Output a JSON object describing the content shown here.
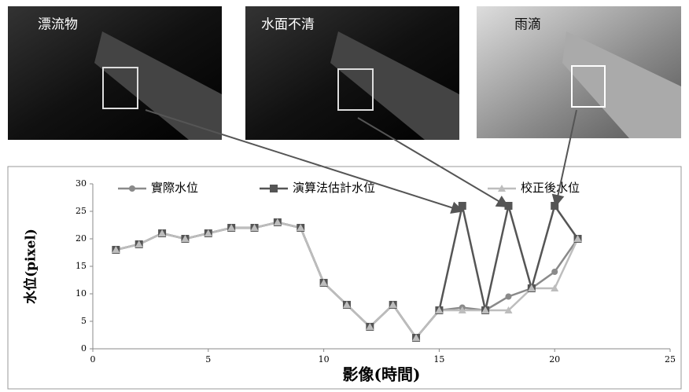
{
  "photos": [
    {
      "label": "漂流物"
    },
    {
      "label": "水面不清"
    },
    {
      "label": "雨滴"
    }
  ],
  "chart_data": {
    "type": "line",
    "x_label": "影像(時間)",
    "y_label": "水位(pixel)",
    "x": [
      1,
      2,
      3,
      4,
      5,
      6,
      7,
      8,
      9,
      10,
      11,
      12,
      13,
      14,
      15,
      16,
      17,
      18,
      19,
      20,
      21
    ],
    "series": [
      {
        "name": "實際水位",
        "color": "#8a8a8a",
        "marker": "circle",
        "values": [
          18,
          19,
          21,
          20,
          21,
          22,
          22,
          23,
          22,
          12,
          8,
          4,
          8,
          2,
          7,
          7.5,
          7,
          9.5,
          11,
          14,
          20
        ]
      },
      {
        "name": "演算法估計水位",
        "color": "#555555",
        "marker": "square",
        "values": [
          18,
          19,
          21,
          20,
          21,
          22,
          22,
          23,
          22,
          12,
          8,
          4,
          8,
          2,
          7,
          26,
          7,
          26,
          11,
          26,
          20
        ]
      },
      {
        "name": "校正後水位",
        "color": "#bdbdbd",
        "marker": "triangle",
        "values": [
          18,
          19,
          21,
          20,
          21,
          22,
          22,
          23,
          22,
          12,
          8,
          4,
          8,
          2,
          7,
          7,
          7,
          7,
          11,
          11,
          20
        ]
      }
    ],
    "xlim": [
      0,
      25
    ],
    "xticks": [
      0,
      5,
      10,
      15,
      20,
      25
    ],
    "ylim": [
      0,
      30
    ],
    "yticks": [
      0,
      5,
      10,
      15,
      20,
      25,
      30
    ],
    "grid": false
  }
}
